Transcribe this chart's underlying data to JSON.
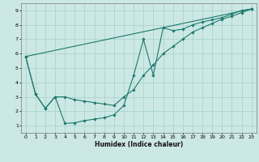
{
  "title": "",
  "xlabel": "Humidex (Indice chaleur)",
  "bg_color": "#cce8e4",
  "grid_color": "#aad4ce",
  "line_color": "#1a7a6e",
  "xlim": [
    -0.5,
    23.5
  ],
  "ylim": [
    0.5,
    9.5
  ],
  "xticks": [
    0,
    1,
    2,
    3,
    4,
    5,
    6,
    7,
    8,
    9,
    10,
    11,
    12,
    13,
    14,
    15,
    16,
    17,
    18,
    19,
    20,
    21,
    22,
    23
  ],
  "yticks": [
    1,
    2,
    3,
    4,
    5,
    6,
    7,
    8,
    9
  ],
  "line1_x": [
    0,
    1,
    2,
    3,
    4,
    5,
    6,
    7,
    8,
    9,
    10,
    11,
    12,
    13,
    14,
    15,
    16,
    17,
    18,
    19,
    20,
    21,
    22,
    23
  ],
  "line1_y": [
    5.8,
    3.2,
    2.2,
    3.0,
    1.15,
    1.2,
    1.35,
    1.45,
    1.55,
    1.75,
    2.4,
    4.5,
    7.0,
    4.5,
    7.8,
    7.6,
    7.7,
    8.0,
    8.2,
    8.35,
    8.5,
    8.75,
    9.0,
    9.1
  ],
  "line2_x": [
    0,
    1,
    2,
    3,
    4,
    5,
    6,
    7,
    8,
    9,
    10,
    11,
    12,
    13,
    14,
    15,
    16,
    17,
    18,
    19,
    20,
    21,
    22,
    23
  ],
  "line2_y": [
    5.8,
    3.2,
    2.2,
    3.0,
    3.0,
    2.8,
    2.7,
    2.6,
    2.5,
    2.4,
    3.0,
    3.5,
    4.5,
    5.2,
    6.0,
    6.5,
    7.0,
    7.5,
    7.8,
    8.1,
    8.4,
    8.6,
    8.85,
    9.1
  ],
  "line3_x": [
    0,
    23
  ],
  "line3_y": [
    5.8,
    9.1
  ],
  "xlabel_fontsize": 5.5,
  "tick_fontsize": 4.5,
  "lw": 0.8,
  "ms": 1.8
}
